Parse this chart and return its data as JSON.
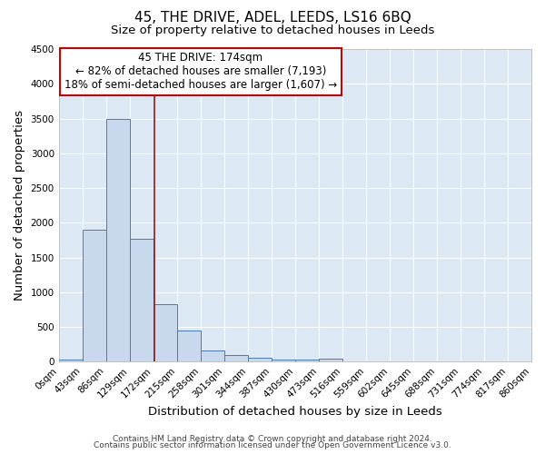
{
  "title": "45, THE DRIVE, ADEL, LEEDS, LS16 6BQ",
  "subtitle": "Size of property relative to detached houses in Leeds",
  "xlabel": "Distribution of detached houses by size in Leeds",
  "ylabel": "Number of detached properties",
  "bin_labels": [
    "0sqm",
    "43sqm",
    "86sqm",
    "129sqm",
    "172sqm",
    "215sqm",
    "258sqm",
    "301sqm",
    "344sqm",
    "387sqm",
    "430sqm",
    "473sqm",
    "516sqm",
    "559sqm",
    "602sqm",
    "645sqm",
    "688sqm",
    "731sqm",
    "774sqm",
    "817sqm",
    "860sqm"
  ],
  "bin_edges": [
    0,
    43,
    86,
    129,
    172,
    215,
    258,
    301,
    344,
    387,
    430,
    473,
    516,
    559,
    602,
    645,
    688,
    731,
    774,
    817,
    860
  ],
  "bar_heights": [
    30,
    1900,
    3500,
    1775,
    830,
    450,
    165,
    90,
    55,
    30,
    30,
    50,
    0,
    0,
    0,
    0,
    0,
    0,
    0,
    0
  ],
  "bar_color": "#c8d9ee",
  "bar_edge_color": "#4a7ab5",
  "ylim": [
    0,
    4500
  ],
  "yticks": [
    0,
    500,
    1000,
    1500,
    2000,
    2500,
    3000,
    3500,
    4000,
    4500
  ],
  "property_size": 174,
  "vline_color": "#8b1a1a",
  "annotation_text": "45 THE DRIVE: 174sqm\n← 82% of detached houses are smaller (7,193)\n18% of semi-detached houses are larger (1,607) →",
  "annotation_box_color": "#ffffff",
  "annotation_border_color": "#cc0000",
  "footer_line1": "Contains HM Land Registry data © Crown copyright and database right 2024.",
  "footer_line2": "Contains public sector information licensed under the Open Government Licence v3.0.",
  "plot_bg_color": "#dce9f5",
  "fig_bg_color": "#ffffff",
  "grid_color": "#ffffff",
  "title_fontsize": 11,
  "subtitle_fontsize": 9.5,
  "tick_fontsize": 7.5,
  "label_fontsize": 9.5,
  "footer_fontsize": 6.5,
  "annotation_fontsize": 8.5
}
